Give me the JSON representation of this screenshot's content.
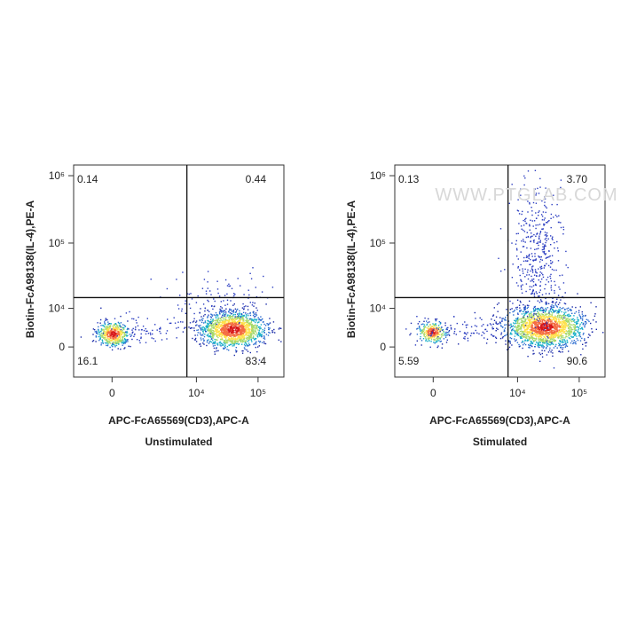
{
  "chart_data": [
    {
      "type": "scatter",
      "caption": "Unstimulated",
      "x_label": "APC-FcA65569(CD3),APC-A",
      "y_label": "Biotin-FcA98138(IL-4),PE-A",
      "xscale": "biexponential",
      "yscale": "biexponential",
      "xlim": [
        -1700,
        262144
      ],
      "ylim": [
        -7000,
        1440000
      ],
      "xticks": [
        0,
        {
          "value": 10000,
          "label": "10⁴"
        },
        {
          "value": 100000,
          "label": "10⁵"
        }
      ],
      "yticks": [
        0,
        {
          "value": 10000,
          "label": "10⁴"
        },
        {
          "value": 100000,
          "label": "10⁵"
        },
        {
          "value": 1000000,
          "label": "10⁶"
        }
      ],
      "gate": {
        "x": 7000,
        "y": 15000
      },
      "quadrants": {
        "values": [
          0.14,
          0.44,
          16.1,
          83.4
        ],
        "value_labels": [
          "0.14",
          "0.44",
          "16.1",
          "83.4"
        ]
      }
    },
    {
      "type": "scatter",
      "caption": "Stimulated",
      "watermark": "WWW.PTGLAB.COM",
      "x_label": "APC-FcA65569(CD3),APC-A",
      "y_label": "Biotin-FcA98138(IL-4),PE-A",
      "xscale": "biexponential",
      "yscale": "biexponential",
      "xlim": [
        -1700,
        262144
      ],
      "ylim": [
        -7000,
        1440000
      ],
      "xticks": [
        0,
        {
          "value": 10000,
          "label": "10⁴"
        },
        {
          "value": 100000,
          "label": "10⁵"
        }
      ],
      "yticks": [
        0,
        {
          "value": 10000,
          "label": "10⁴"
        },
        {
          "value": 100000,
          "label": "10⁵"
        },
        {
          "value": 1000000,
          "label": "10⁶"
        }
      ],
      "gate": {
        "x": 7000,
        "y": 15000
      },
      "quadrants": {
        "values": [
          0.13,
          3.7,
          5.59,
          90.6
        ],
        "value_labels": [
          "0.13",
          "3.70",
          "5.59",
          "90.6"
        ]
      }
    }
  ]
}
